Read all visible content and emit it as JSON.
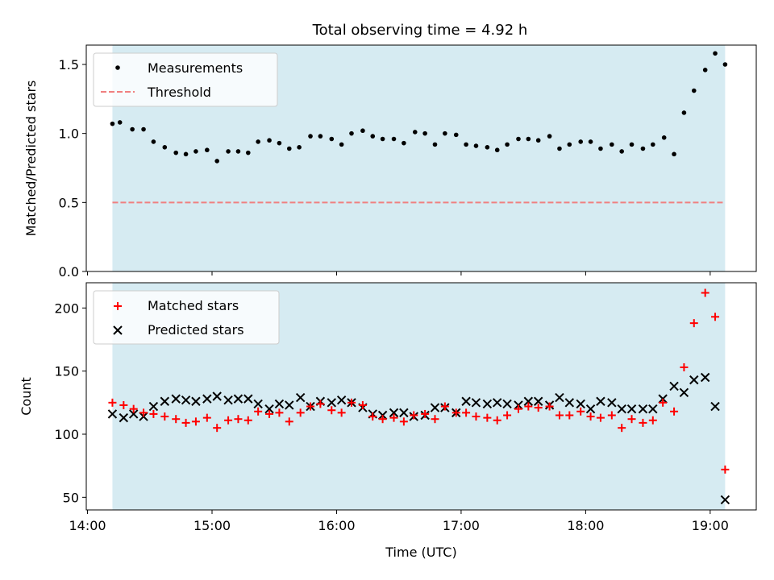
{
  "figure": {
    "title": "Total observing time = 4.92 h",
    "xlabel": "Time (UTC)"
  },
  "colors": {
    "band": "#add8e6",
    "measurement": "#000000",
    "threshold": "#f08080",
    "matched": "#ff0000",
    "predicted": "#000000"
  },
  "chart_data": [
    {
      "type": "scatter",
      "panel": "top",
      "title": "Total observing time = 4.92 h",
      "xlabel": "",
      "ylabel": "Matched/Predicted stars",
      "x_unit": "hours UTC",
      "xlim": [
        13.99,
        19.37
      ],
      "ylim": [
        0.0,
        1.64
      ],
      "xticks": [
        14,
        15,
        16,
        17,
        18,
        19
      ],
      "xtick_labels": [],
      "yticks": [
        0.0,
        0.5,
        1.0,
        1.5
      ],
      "ytick_labels": [
        "0.0",
        "0.5",
        "1.0",
        "1.5"
      ],
      "observing_window": [
        14.2,
        19.12
      ],
      "legend": {
        "placement": "upper left",
        "entries": [
          "Measurements",
          "Threshold"
        ]
      },
      "threshold": {
        "name": "Threshold",
        "y": 0.5,
        "x_range": [
          14.2,
          19.12
        ],
        "style": "dashed"
      },
      "series": [
        {
          "name": "Measurements",
          "marker": "dot",
          "x": [
            14.2,
            14.26,
            14.36,
            14.45,
            14.53,
            14.62,
            14.71,
            14.79,
            14.87,
            14.96,
            15.04,
            15.13,
            15.21,
            15.29,
            15.37,
            15.46,
            15.54,
            15.62,
            15.7,
            15.79,
            15.87,
            15.96,
            16.04,
            16.12,
            16.21,
            16.29,
            16.37,
            16.46,
            16.54,
            16.63,
            16.71,
            16.79,
            16.87,
            16.96,
            17.04,
            17.12,
            17.21,
            17.29,
            17.37,
            17.46,
            17.54,
            17.62,
            17.71,
            17.79,
            17.87,
            17.96,
            18.04,
            18.12,
            18.21,
            18.29,
            18.37,
            18.46,
            18.54,
            18.63,
            18.71,
            18.79,
            18.87,
            18.96,
            19.04,
            19.12
          ],
          "y": [
            1.07,
            1.08,
            1.03,
            1.03,
            0.94,
            0.9,
            0.86,
            0.85,
            0.87,
            0.88,
            0.8,
            0.87,
            0.87,
            0.86,
            0.94,
            0.95,
            0.93,
            0.89,
            0.9,
            0.98,
            0.98,
            0.96,
            0.92,
            1.0,
            1.02,
            0.98,
            0.96,
            0.96,
            0.93,
            1.01,
            1.0,
            0.92,
            1.0,
            0.99,
            0.92,
            0.91,
            0.9,
            0.88,
            0.92,
            0.96,
            0.96,
            0.95,
            0.98,
            0.89,
            0.92,
            0.94,
            0.94,
            0.89,
            0.92,
            0.87,
            0.92,
            0.89,
            0.92,
            0.97,
            0.85,
            1.15,
            1.31,
            1.46,
            1.58,
            1.5
          ]
        }
      ]
    },
    {
      "type": "scatter",
      "panel": "bottom",
      "xlabel": "Time (UTC)",
      "ylabel": "Count",
      "x_unit": "hours UTC",
      "xlim": [
        13.99,
        19.37
      ],
      "ylim": [
        40,
        220
      ],
      "xticks": [
        14,
        15,
        16,
        17,
        18,
        19
      ],
      "xtick_labels": [
        "14:00",
        "15:00",
        "16:00",
        "17:00",
        "18:00",
        "19:00"
      ],
      "yticks": [
        50,
        100,
        150,
        200
      ],
      "ytick_labels": [
        "50",
        "100",
        "150",
        "200"
      ],
      "observing_window": [
        14.2,
        19.12
      ],
      "legend": {
        "placement": "upper left",
        "entries": [
          "Matched stars",
          "Predicted stars"
        ]
      },
      "series": [
        {
          "name": "Matched stars",
          "marker": "plus",
          "x": [
            14.2,
            14.29,
            14.37,
            14.45,
            14.53,
            14.62,
            14.71,
            14.79,
            14.87,
            14.96,
            15.04,
            15.13,
            15.21,
            15.29,
            15.37,
            15.46,
            15.54,
            15.62,
            15.71,
            15.79,
            15.87,
            15.96,
            16.04,
            16.12,
            16.21,
            16.29,
            16.37,
            16.46,
            16.54,
            16.62,
            16.71,
            16.79,
            16.87,
            16.96,
            17.04,
            17.12,
            17.21,
            17.29,
            17.37,
            17.46,
            17.54,
            17.62,
            17.71,
            17.79,
            17.87,
            17.96,
            18.04,
            18.12,
            18.21,
            18.29,
            18.37,
            18.46,
            18.54,
            18.62,
            18.71,
            18.79,
            18.87,
            18.96,
            19.04,
            19.12
          ],
          "y": [
            125,
            123,
            120,
            117,
            116,
            114,
            112,
            109,
            110,
            113,
            105,
            111,
            112,
            111,
            118,
            116,
            117,
            110,
            117,
            122,
            124,
            119,
            117,
            125,
            123,
            114,
            112,
            113,
            110,
            115,
            116,
            112,
            122,
            117,
            117,
            114,
            113,
            111,
            115,
            120,
            122,
            121,
            122,
            115,
            115,
            118,
            114,
            113,
            115,
            105,
            112,
            109,
            111,
            125,
            118,
            153,
            188,
            212,
            193,
            72
          ]
        },
        {
          "name": "Predicted stars",
          "marker": "x",
          "x": [
            14.2,
            14.29,
            14.37,
            14.45,
            14.53,
            14.62,
            14.71,
            14.79,
            14.87,
            14.96,
            15.04,
            15.13,
            15.21,
            15.29,
            15.37,
            15.46,
            15.54,
            15.62,
            15.71,
            15.79,
            15.87,
            15.96,
            16.04,
            16.12,
            16.21,
            16.29,
            16.37,
            16.46,
            16.54,
            16.62,
            16.71,
            16.79,
            16.87,
            16.96,
            17.04,
            17.12,
            17.21,
            17.29,
            17.37,
            17.46,
            17.54,
            17.62,
            17.71,
            17.79,
            17.87,
            17.96,
            18.04,
            18.12,
            18.21,
            18.29,
            18.37,
            18.46,
            18.54,
            18.62,
            18.71,
            18.79,
            18.87,
            18.96,
            19.04,
            19.12
          ],
          "y": [
            116,
            113,
            116,
            114,
            122,
            126,
            128,
            127,
            126,
            128,
            130,
            127,
            128,
            128,
            124,
            120,
            124,
            123,
            129,
            122,
            126,
            125,
            127,
            125,
            121,
            116,
            115,
            117,
            117,
            114,
            115,
            121,
            121,
            117,
            126,
            125,
            124,
            125,
            124,
            123,
            126,
            126,
            123,
            129,
            125,
            124,
            120,
            126,
            125,
            120,
            120,
            120,
            120,
            128,
            138,
            133,
            143,
            145,
            122,
            48
          ]
        }
      ]
    }
  ]
}
